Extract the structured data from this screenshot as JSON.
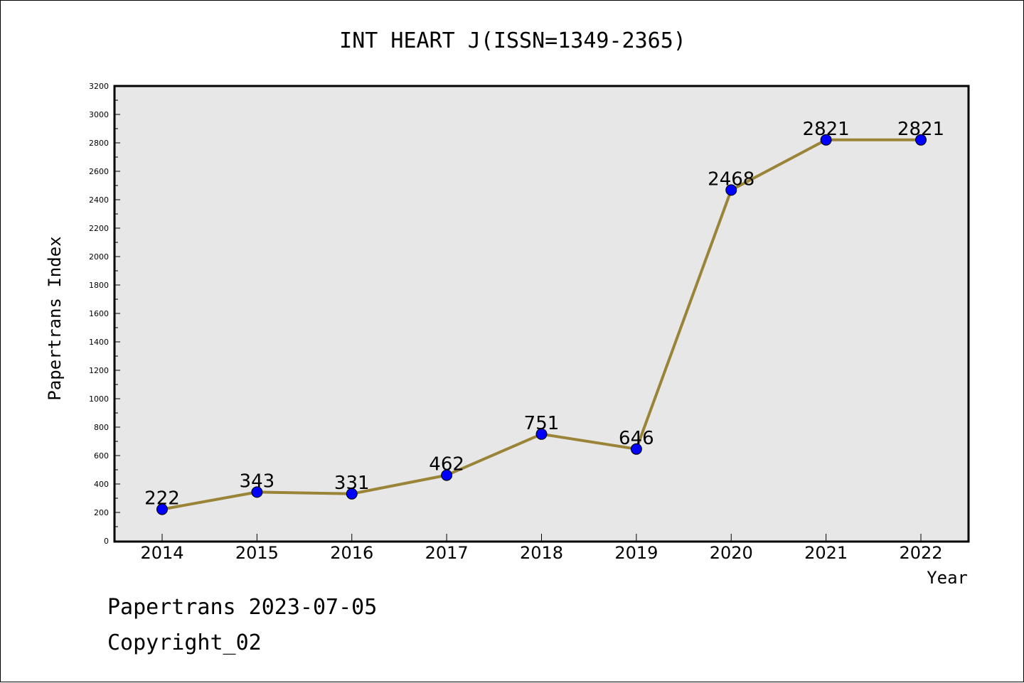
{
  "chart_data": {
    "type": "line",
    "title": "INT HEART J(ISSN=1349-2365)",
    "xlabel": "Year",
    "ylabel": "Papertrans Index",
    "categories": [
      "2014",
      "2015",
      "2016",
      "2017",
      "2018",
      "2019",
      "2020",
      "2021",
      "2022"
    ],
    "series": [
      {
        "values": [
          222,
          343,
          331,
          462,
          751,
          646,
          2468,
          2821,
          2821
        ]
      }
    ],
    "data_labels": [
      "222",
      "343",
      "331",
      "462",
      "751",
      "646",
      "2468",
      "2821",
      "2821"
    ],
    "ylim": [
      0,
      3200
    ],
    "yticks": [
      "0",
      "200",
      "400",
      "600",
      "800",
      "1000",
      "1200",
      "1400",
      "1600",
      "1800",
      "2000",
      "2200",
      "2400",
      "2600",
      "2800",
      "3000",
      "3200"
    ],
    "grid": false,
    "colors": {
      "line": "#9a8438",
      "marker": "#0000ff",
      "plot_background": "#e7e7e7"
    }
  },
  "footer": {
    "line1": "Papertrans 2023-07-05",
    "line2": "Copyright_02"
  }
}
